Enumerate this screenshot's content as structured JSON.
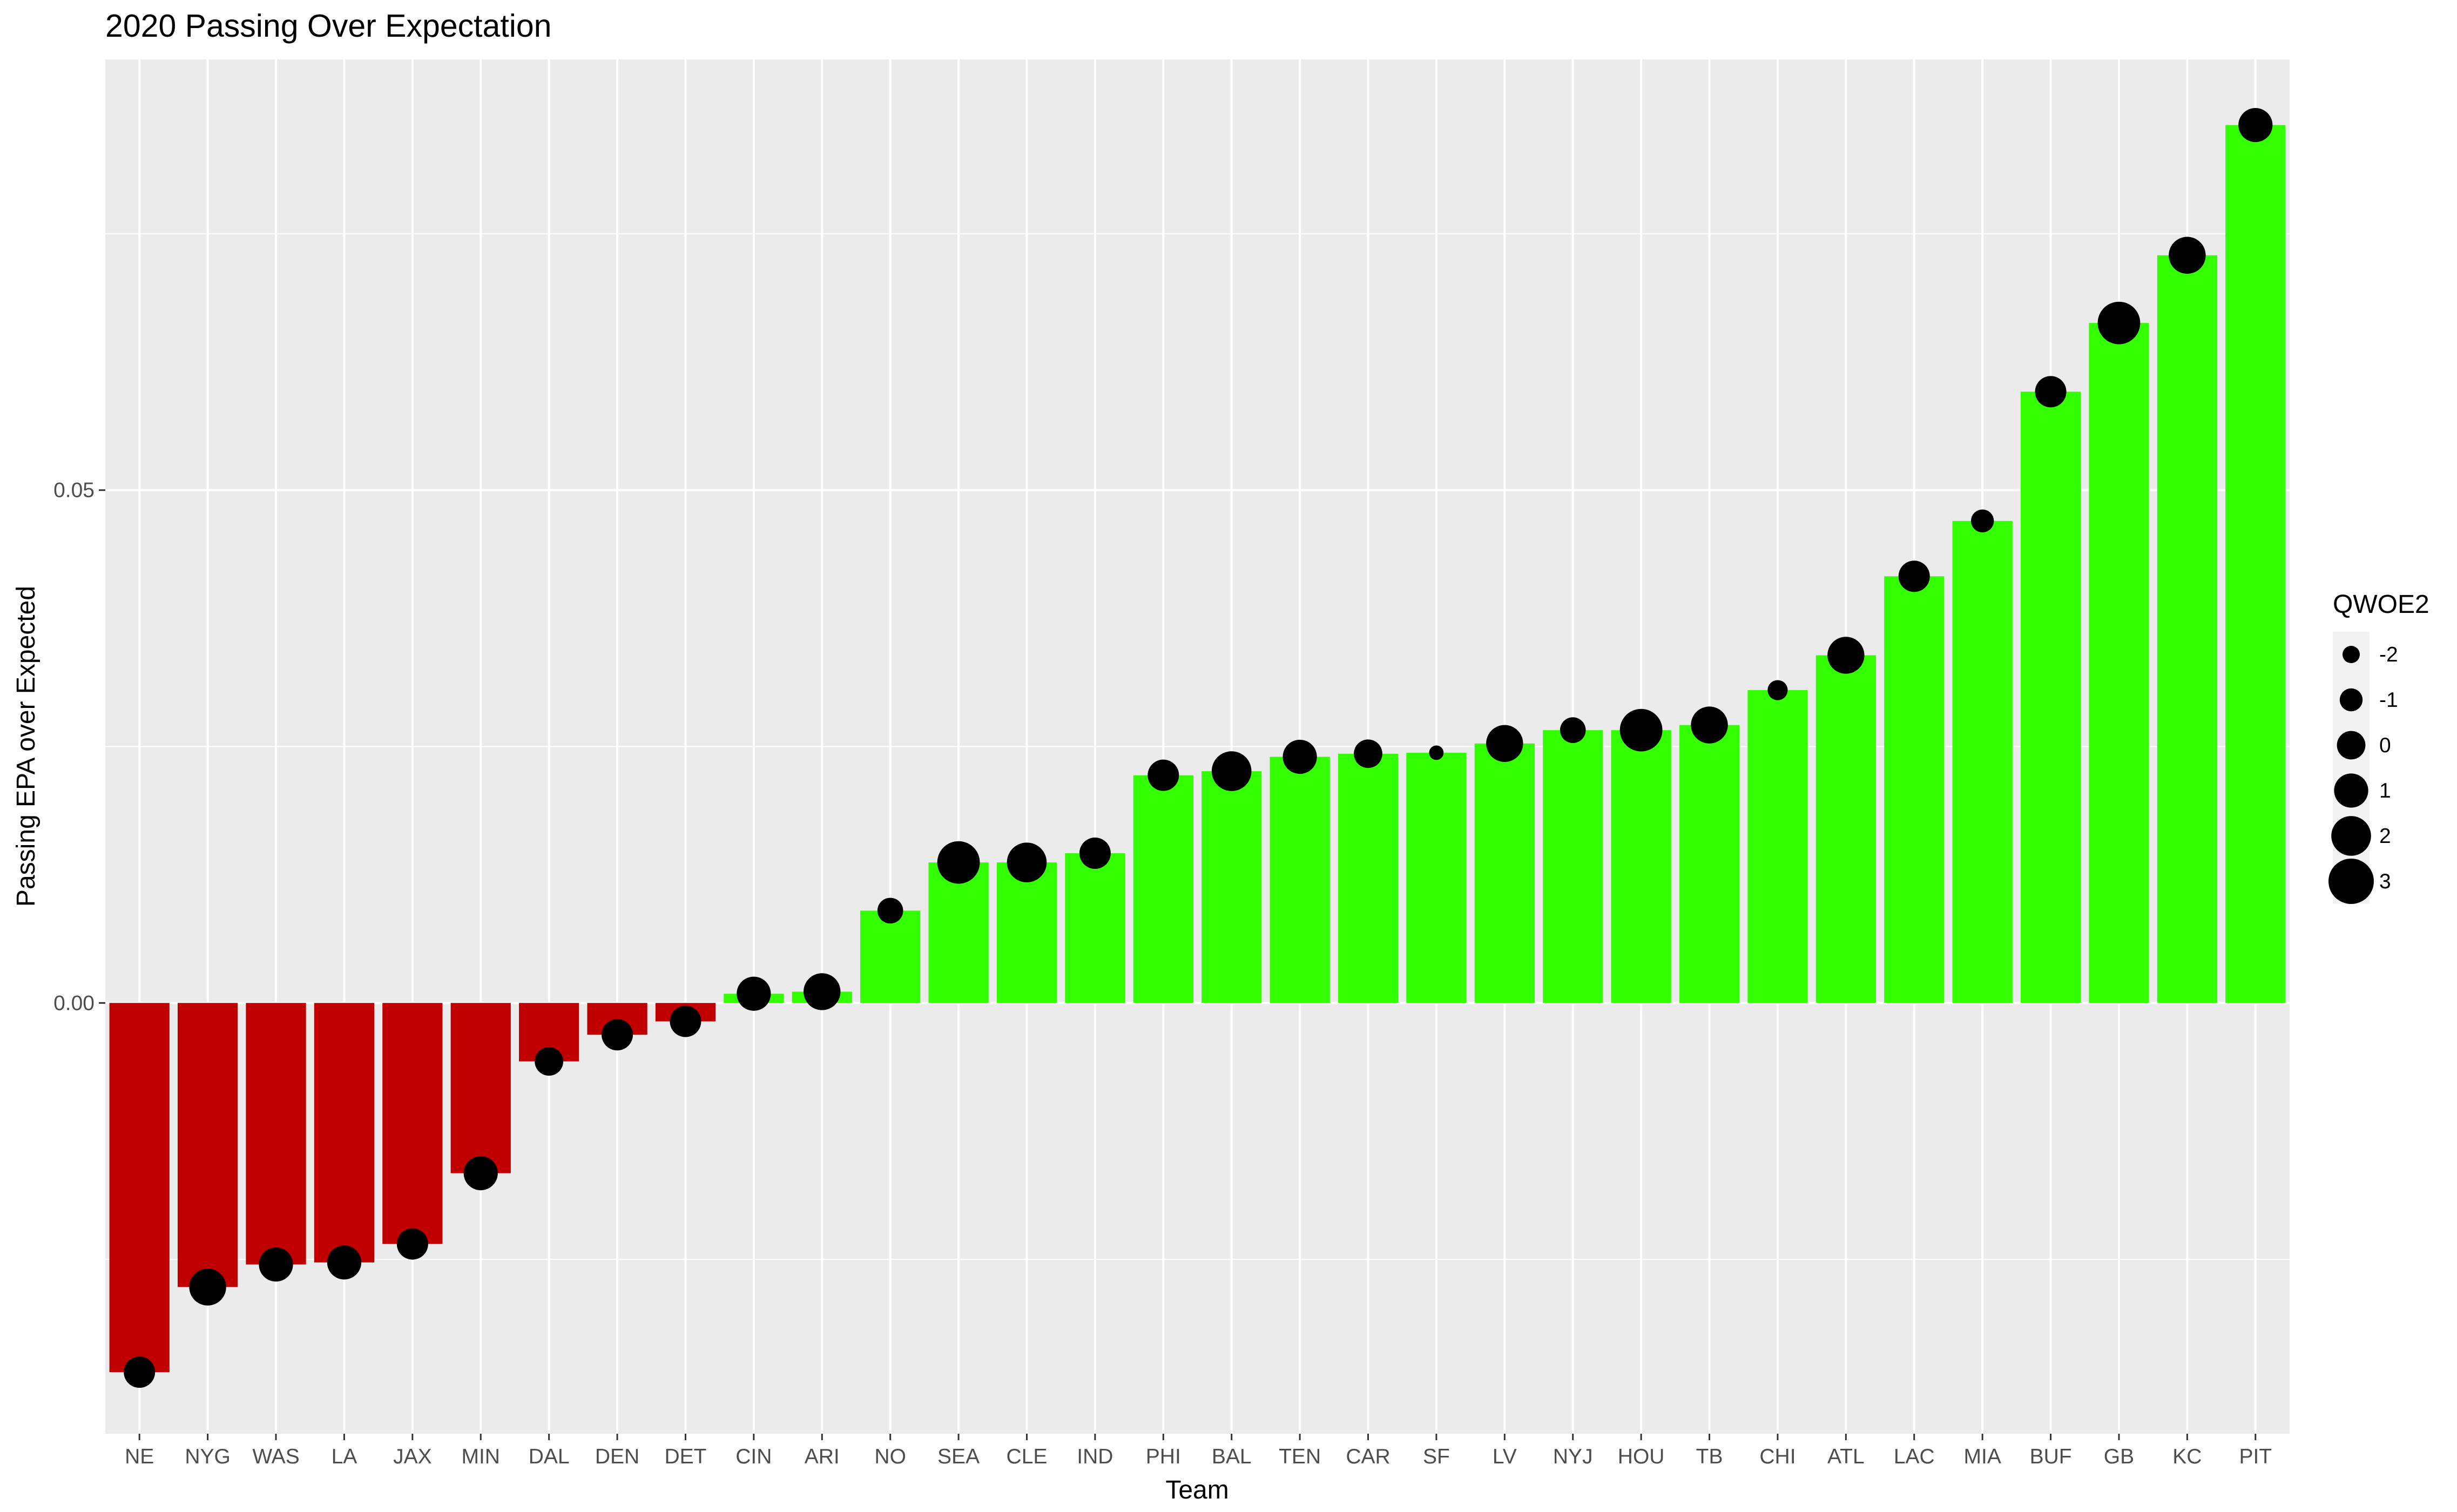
{
  "chart_data": {
    "type": "bar",
    "title": "2020 Passing Over Expectation",
    "xlabel": "Team",
    "ylabel": "Passing EPA over Expected",
    "ylim": [
      -0.042,
      0.092
    ],
    "yticks": [
      0.0,
      0.05
    ],
    "ytick_labels": [
      "0.00",
      "0.05"
    ],
    "grid": true,
    "background": "#EBEBEB",
    "colors": {
      "negative": "#C00000",
      "positive": "#33FF00",
      "point": "#000000",
      "grid": "#FFFFFF"
    },
    "categories": [
      "NE",
      "NYG",
      "WAS",
      "LA",
      "JAX",
      "MIN",
      "DAL",
      "DEN",
      "DET",
      "CIN",
      "ARI",
      "NO",
      "SEA",
      "CLE",
      "IND",
      "PHI",
      "BAL",
      "TEN",
      "CAR",
      "SF",
      "LV",
      "NYJ",
      "HOU",
      "TB",
      "CHI",
      "ATL",
      "LAC",
      "MIA",
      "BUF",
      "GB",
      "KC",
      "PIT"
    ],
    "values": [
      -0.036,
      -0.0277,
      -0.0255,
      -0.0253,
      -0.0235,
      -0.0166,
      -0.0057,
      -0.0031,
      -0.0018,
      0.0009,
      0.0011,
      0.009,
      0.0137,
      0.0137,
      0.0146,
      0.0222,
      0.0226,
      0.024,
      0.0243,
      0.0244,
      0.0253,
      0.0266,
      0.0266,
      0.0271,
      0.0305,
      0.0339,
      0.0416,
      0.047,
      0.0596,
      0.0663,
      0.0729,
      0.0856
    ],
    "point_series": {
      "name": "QWOE2",
      "size_values": [
        0.5,
        1.5,
        1.0,
        1.0,
        0.5,
        1.0,
        0.0,
        0.5,
        0.5,
        1.0,
        1.5,
        -0.5,
        2.5,
        2.0,
        0.5,
        0.5,
        2.0,
        1.0,
        0.0,
        -2.5,
        1.5,
        -0.5,
        2.5,
        1.5,
        -1.5,
        1.5,
        0.5,
        -1.0,
        0.5,
        2.5,
        1.5,
        1.0
      ]
    },
    "legend": {
      "title": "QWOE2",
      "position": "right",
      "items": [
        "-2",
        "-1",
        "0",
        "1",
        "2",
        "3"
      ],
      "sizes": [
        -2,
        -1,
        0,
        1,
        2,
        3
      ]
    }
  }
}
